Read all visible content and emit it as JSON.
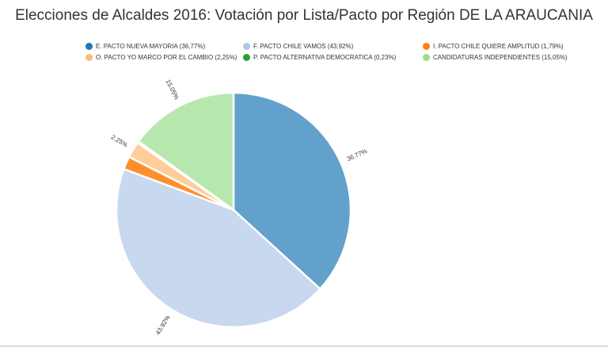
{
  "chart_data": {
    "type": "pie",
    "title": "Elecciones de Alcaldes 2016: Votación por Lista/Pacto por Región DE LA ARAUCANIA",
    "legend_placement": "top",
    "slices": [
      {
        "legend": "E. PACTO NUEVA MAYORIA (36,77%)",
        "value": 36.77,
        "label": "36.77%",
        "color": "#1f77b4",
        "fill": "#62a1cb"
      },
      {
        "legend": "F. PACTO CHILE VAMOS (43,92%)",
        "value": 43.92,
        "label": "43.92%",
        "color": "#aec7e8",
        "fill": "#c7d8ef"
      },
      {
        "legend": "I. PACTO CHILE QUIERE AMPLITUD (1,79%)",
        "value": 1.79,
        "label": "",
        "color": "#ff7f0e",
        "fill": "#ff8f2b"
      },
      {
        "legend": "O. PACTO YO MARCO POR EL CAMBIO (2,25%)",
        "value": 2.25,
        "label": "2.25%",
        "color": "#ffbb78",
        "fill": "#ffcc9c"
      },
      {
        "legend": "P. PACTO ALTERNATIVA DEMOCRATICA (0,23%)",
        "value": 0.23,
        "label": "",
        "color": "#2ca02c",
        "fill": "#4db04d"
      },
      {
        "legend": "CANDIDATURAS INDEPENDIENTES (15,05%)",
        "value": 15.05,
        "label": "15.05%",
        "color": "#98df8a",
        "fill": "#b6e8ad"
      }
    ]
  }
}
